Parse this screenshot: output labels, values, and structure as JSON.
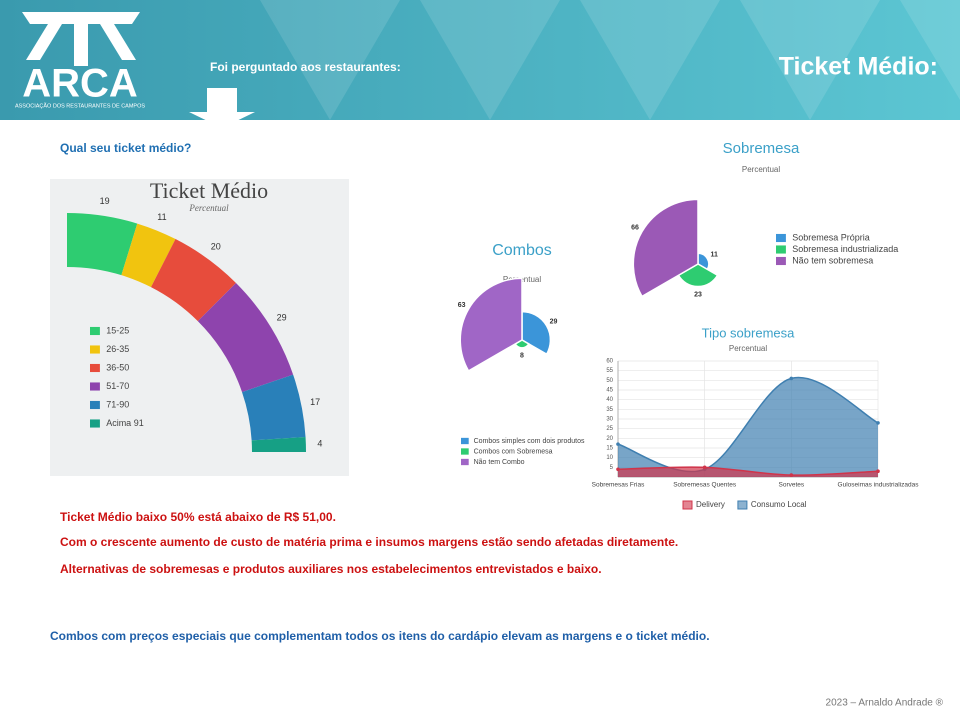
{
  "header": {
    "logo": "ARCA",
    "logo_subtitle": "ASSOCIAÇÃO DOS RESTAURANTES DE CAMPOS",
    "intro": "Foi perguntado aos restaurantes:",
    "title": "Ticket Médio:"
  },
  "question": "Qual seu ticket médio?",
  "chart_data": [
    {
      "type": "arc",
      "title": "Ticket Médio",
      "subtitle": "Percentual",
      "categories": [
        "15-25",
        "26-35",
        "36-50",
        "51-70",
        "71-90",
        "Acima 91"
      ],
      "values": [
        19,
        11,
        20,
        29,
        17,
        4
      ],
      "colors": [
        "#2ecc71",
        "#f1c40f",
        "#e74c3c",
        "#8e44ad",
        "#2980b9",
        "#16a085"
      ]
    },
    {
      "type": "polarArea",
      "title": "Combos",
      "subtitle": "Percentual",
      "categories": [
        "Combos simples com dois produtos",
        "Combos com Sobremesa",
        "Não tem Combo"
      ],
      "values": [
        29,
        8,
        63
      ],
      "colors": [
        "#3b95d9",
        "#2ecc71",
        "#a066c6"
      ]
    },
    {
      "type": "polarArea",
      "title": "Sobremesa",
      "subtitle": "Percentual",
      "categories": [
        "Sobremesa Própria",
        "Sobremesa industrializada",
        "Não tem sobremesa"
      ],
      "values": [
        11,
        23,
        66
      ],
      "colors": [
        "#3b95d9",
        "#2ecc71",
        "#9b59b6"
      ]
    },
    {
      "type": "area",
      "title": "Tipo sobremesa",
      "subtitle": "Percentual",
      "categories": [
        "Sobremesas Frias",
        "Sobremesas Quentes",
        "Sorvetes",
        "Guloseimas industrializadas"
      ],
      "series": [
        {
          "name": "Delivery",
          "color": "#d0344a",
          "values": [
            4,
            5,
            1,
            3
          ]
        },
        {
          "name": "Consumo Local",
          "color": "#3f7fb0",
          "values": [
            17,
            4,
            51,
            28
          ]
        }
      ],
      "ylim": [
        0,
        60
      ],
      "yticks": [
        5,
        10,
        15,
        20,
        25,
        30,
        35,
        40,
        45,
        50,
        55,
        60
      ],
      "grid": true
    }
  ],
  "notes": [
    "Ticket Médio baixo 50% está abaixo de R$ 51,00.",
    "Com o crescente aumento de custo de matéria prima e insumos margens estão sendo afetadas diretamente.",
    "Alternativas de sobremesas e produtos auxiliares nos estabelecimentos entrevistados e baixo."
  ],
  "conclusion": "Combos com preços especiais que complementam todos os itens do cardápio elevam as margens e o ticket médio.",
  "footer": "2023 – Arnaldo Andrade ®"
}
